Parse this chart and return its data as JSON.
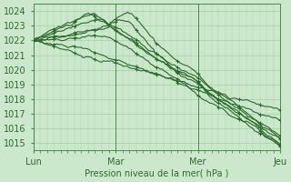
{
  "title": "",
  "xlabel": "Pression niveau de la mer( hPa )",
  "ylabel": "",
  "bg_color": "#cce8cc",
  "grid_color": "#aaccaa",
  "line_color": "#2d6a2d",
  "marker_color": "#2d6a2d",
  "ylim": [
    1014.5,
    1024.5
  ],
  "yticks": [
    1015,
    1016,
    1017,
    1018,
    1019,
    1020,
    1021,
    1022,
    1023,
    1024
  ],
  "xtick_labels": [
    "Lun",
    "Mar",
    "Mer",
    "Jeu"
  ],
  "xtick_positions": [
    0,
    48,
    96,
    144
  ],
  "total_points": 145,
  "vline_positions": [
    0,
    48,
    96,
    144
  ]
}
